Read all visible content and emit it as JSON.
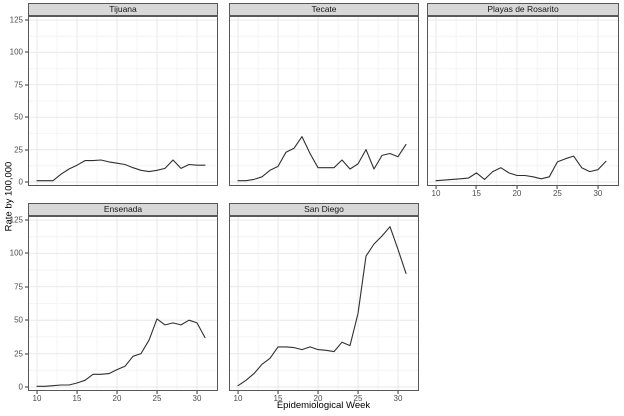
{
  "chart_data": {
    "type": "line",
    "title": "",
    "xlabel": "Epidemiological Week",
    "ylabel": "Rate by 100,000",
    "weeks": [
      10,
      11,
      12,
      13,
      14,
      15,
      16,
      17,
      18,
      19,
      20,
      21,
      22,
      23,
      24,
      25,
      26,
      27,
      28,
      29,
      30,
      31
    ],
    "xlim": [
      10,
      31
    ],
    "ylim": [
      0,
      125
    ],
    "x_ticks": [
      10,
      15,
      20,
      25,
      30
    ],
    "y_ticks": [
      0,
      25,
      50,
      75,
      100,
      125
    ],
    "grid": true,
    "legend": "none",
    "facet_layout": "3 columns x 2 rows, panels: Tijuana, Tecate, Playas de Rosarito, Ensenada, San Diego",
    "series": [
      {
        "name": "Tijuana",
        "values": [
          1,
          1,
          1,
          6,
          10,
          13,
          16.5,
          16.5,
          17,
          15.5,
          14.5,
          13.5,
          11,
          9,
          8,
          9,
          10.5,
          17,
          10.5,
          13.5,
          13,
          13
        ]
      },
      {
        "name": "Tecate",
        "values": [
          1,
          1,
          2,
          4,
          9,
          12,
          23,
          26,
          35,
          22,
          11,
          11,
          11,
          17,
          10,
          14,
          25,
          10,
          20.5,
          22,
          19.5,
          29
        ]
      },
      {
        "name": "Playas de Rosarito",
        "values": [
          1,
          1.5,
          2,
          2.5,
          3,
          7,
          2,
          8,
          11,
          7,
          5,
          5,
          4,
          2.5,
          4,
          15.5,
          18,
          20,
          11,
          8,
          9.5,
          16
        ]
      },
      {
        "name": "Ensenada",
        "values": [
          0.5,
          0.5,
          1,
          1.5,
          1.5,
          3,
          5,
          9.5,
          9.5,
          10,
          13,
          15.5,
          23,
          25,
          35,
          51,
          46.5,
          48,
          46.5,
          50,
          48,
          37
        ]
      },
      {
        "name": "San Diego",
        "values": [
          1,
          5,
          10,
          17,
          21.5,
          30,
          30,
          29.5,
          28,
          30,
          28,
          27.5,
          26.5,
          33.5,
          31,
          55,
          98,
          107,
          113,
          120,
          103,
          85
        ]
      }
    ]
  },
  "theme": {
    "strip_bg": "#d8d8d8",
    "panel_bg": "#ffffff",
    "panel_border": "#585858",
    "grid_major": "#e9e9e9",
    "grid_minor": "#f4f4f4",
    "line_color": "#303030",
    "tick_color": "#333333",
    "tick_label_color": "#4d4d4d"
  }
}
